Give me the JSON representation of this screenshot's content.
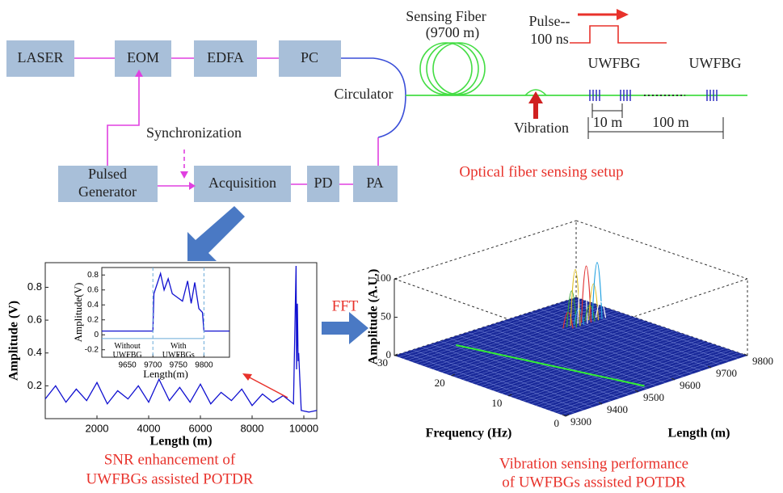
{
  "setup": {
    "boxes": [
      "LASER",
      "EOM",
      "EDFA",
      "PC",
      "Acquisition",
      "PD",
      "PA"
    ],
    "pulsed_generator": [
      "Pulsed",
      "Generator"
    ],
    "synchronization": "Synchronization",
    "circulator": "Circulator",
    "sensing_fiber": [
      "Sensing Fiber",
      "(9700 m)"
    ],
    "pulse": [
      "Pulse--",
      "100 ns"
    ],
    "uwfbg_labels": [
      "UWFBG",
      "UWFBG"
    ],
    "vibration": "Vibration",
    "spacing": [
      "10 m",
      "100 m"
    ],
    "caption": "Optical fiber sensing setup"
  },
  "fft": "FFT",
  "chart_data": [
    {
      "type": "line",
      "x_label": "Length (m)",
      "y_label": "Amplitude (V)",
      "xlim": [
        0,
        10500
      ],
      "ylim": [
        0,
        0.95
      ],
      "xticks": [
        2000,
        4000,
        6000,
        8000,
        10000
      ],
      "yticks": [
        0.2,
        0.4,
        0.6,
        0.8
      ],
      "series": [
        {
          "color": "#1010d0",
          "x": [
            0,
            400,
            800,
            1200,
            1600,
            2000,
            2400,
            2800,
            3200,
            3600,
            4000,
            4400,
            4800,
            5200,
            5600,
            6000,
            6400,
            6800,
            7200,
            7600,
            8000,
            8400,
            8800,
            9200,
            9600,
            9700,
            9720,
            9750,
            9780,
            9800,
            9900,
            10200,
            10500
          ],
          "values": [
            0.12,
            0.2,
            0.1,
            0.18,
            0.11,
            0.22,
            0.09,
            0.17,
            0.12,
            0.2,
            0.1,
            0.24,
            0.11,
            0.19,
            0.1,
            0.21,
            0.09,
            0.16,
            0.11,
            0.18,
            0.08,
            0.15,
            0.1,
            0.14,
            0.09,
            0.93,
            0.3,
            0.7,
            0.35,
            0.4,
            0.05,
            0.04,
            0.05
          ]
        }
      ],
      "inset": {
        "x_label": "Length(m)",
        "y_label": "Amplitude(V)",
        "xlim": [
          9600,
          9850
        ],
        "ylim": [
          -0.3,
          0.9
        ],
        "xticks": [
          9650,
          9700,
          9750,
          9800
        ],
        "yticks": [
          -0.2,
          0,
          0.2,
          0.4,
          0.6,
          0.8
        ],
        "regions": [
          "Without",
          "UWFBG",
          "With",
          "UWFBGs"
        ],
        "series": [
          {
            "color": "#1010d0",
            "x": [
              9600,
              9650,
              9700,
              9702,
              9715,
              9722,
              9730,
              9738,
              9748,
              9758,
              9768,
              9775,
              9782,
              9790,
              9797,
              9800,
              9850
            ],
            "values": [
              0.05,
              0.05,
              0.05,
              0.55,
              0.82,
              0.6,
              0.75,
              0.55,
              0.5,
              0.45,
              0.72,
              0.42,
              0.7,
              0.35,
              0.3,
              0.05,
              0.05
            ]
          }
        ]
      },
      "caption": [
        "SNR enhancement of",
        "UWFBGs assisted POTDR"
      ]
    },
    {
      "type": "surface3d",
      "x_label": "Length (m)",
      "y_label": "Frequency (Hz)",
      "z_label": "Amplitude (A.U.)",
      "xlim": [
        9300,
        9800
      ],
      "ylim": [
        0,
        30
      ],
      "zlim": [
        0,
        100
      ],
      "xticks": [
        9300,
        9400,
        9500,
        9600,
        9700,
        9800
      ],
      "yticks": [
        0,
        10,
        20,
        30
      ],
      "zticks": [
        0,
        50,
        100
      ],
      "caption": [
        "Vibration sensing performance",
        "of UWFBGs assisted POTDR"
      ]
    }
  ]
}
